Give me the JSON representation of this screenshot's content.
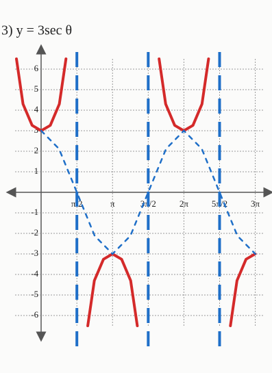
{
  "chart_data": {
    "type": "line",
    "title": "3)  y = 3sec θ",
    "xlim": [
      -1.15,
      9.8
    ],
    "ylim": [
      -6.5,
      6.5
    ],
    "xticks": [
      {
        "value": 1.5708,
        "label": "π/2"
      },
      {
        "value": 3.1416,
        "label": "π"
      },
      {
        "value": 4.7124,
        "label": "3π/2"
      },
      {
        "value": 6.2832,
        "label": "2π"
      },
      {
        "value": 7.854,
        "label": "5π/2"
      },
      {
        "value": 9.4248,
        "label": "3π"
      }
    ],
    "yticks": [
      -6,
      -5,
      -4,
      -3,
      -2,
      -1,
      1,
      2,
      3,
      4,
      5,
      6
    ],
    "grid": true,
    "asymptotes": [
      1.5708,
      4.7124,
      7.854
    ],
    "asymptote_color": "#1f6fc8",
    "series": [
      {
        "color": "#d42a2a",
        "x": [
          -1.09,
          -0.8,
          -0.4,
          0,
          0.4,
          0.8,
          1.09,
          null,
          2.05,
          2.34,
          2.74,
          3.14,
          3.54,
          3.94,
          4.23,
          null,
          5.19,
          5.48,
          5.88,
          6.28,
          6.68,
          7.08,
          7.37,
          null,
          8.33,
          8.62,
          9.02,
          9.42
        ],
        "values": [
          6.5,
          4.3,
          3.26,
          3,
          3.26,
          4.3,
          6.5,
          null,
          -6.5,
          -4.3,
          -3.26,
          -3,
          -3.26,
          -4.3,
          -6.5,
          null,
          6.5,
          4.3,
          3.26,
          3,
          3.26,
          4.3,
          6.5,
          null,
          -6.5,
          -4.3,
          -3.26,
          -3
        ]
      },
      {
        "color": "#1f6fc8",
        "dashed": true,
        "x": [
          0,
          0.785,
          1.571,
          2.356,
          3.142,
          3.927,
          4.712,
          5.498,
          6.283,
          7.069,
          7.854,
          8.639,
          9.425
        ],
        "values": [
          3,
          2.12,
          0,
          -2.12,
          -3,
          -2.12,
          0,
          2.12,
          3,
          2.12,
          0,
          -2.12,
          -3
        ]
      }
    ]
  }
}
